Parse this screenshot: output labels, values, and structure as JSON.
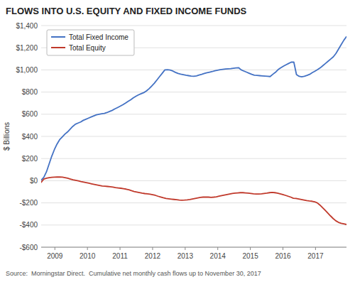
{
  "chart_data": {
    "type": "line",
    "title": "FLOWS INTO U.S. EQUITY AND FIXED INCOME FUNDS",
    "y_label": "$ Billions",
    "source": "Source:  Morningstar Direct.  Cumulative net monthly cash flows up to November 30, 2017",
    "xlim": [
      2008.58,
      2017.95
    ],
    "xticks": [
      2009,
      2010,
      2011,
      2012,
      2013,
      2014,
      2015,
      2016,
      2017
    ],
    "ylim": [
      -600,
      1400
    ],
    "yticks": [
      {
        "value": -600,
        "label": "-$600"
      },
      {
        "value": -400,
        "label": "-$400"
      },
      {
        "value": -200,
        "label": "-$200"
      },
      {
        "value": 0,
        "label": "$0"
      },
      {
        "value": 200,
        "label": "$200"
      },
      {
        "value": 400,
        "label": "$400"
      },
      {
        "value": 600,
        "label": "$600"
      },
      {
        "value": 800,
        "label": "$800"
      },
      {
        "value": 1000,
        "label": "$1,000"
      },
      {
        "value": 1200,
        "label": "$1,200"
      },
      {
        "value": 1400,
        "label": "$1,400"
      }
    ],
    "grid": true,
    "legend": "upper left",
    "series": [
      {
        "name": "Total Fixed Income",
        "color": "#4472c4",
        "x": [
          2008.58,
          2008.6608,
          2008.7416,
          2008.8223,
          2008.9031,
          2008.9839,
          2009.0647,
          2009.1454,
          2009.2262,
          2009.307,
          2009.3878,
          2009.4685,
          2009.5493,
          2009.6301,
          2009.7109,
          2009.7916,
          2009.8724,
          2009.9532,
          2010.034,
          2010.1147,
          2010.1955,
          2010.2763,
          2010.3571,
          2010.4378,
          2010.5186,
          2010.5994,
          2010.6802,
          2010.7609,
          2010.8417,
          2010.9225,
          2011.0033,
          2011.0841,
          2011.1648,
          2011.2456,
          2011.3264,
          2011.4072,
          2011.4879,
          2011.5687,
          2011.6495,
          2011.7303,
          2011.811,
          2011.8918,
          2011.9726,
          2012.0534,
          2012.1341,
          2012.2149,
          2012.2957,
          2012.3765,
          2012.4572,
          2012.538,
          2012.6188,
          2012.6996,
          2012.7803,
          2012.8611,
          2012.9419,
          2013.0227,
          2013.1034,
          2013.1842,
          2013.265,
          2013.3458,
          2013.4266,
          2013.5073,
          2013.5881,
          2013.6689,
          2013.7497,
          2013.8304,
          2013.9112,
          2013.992,
          2014.0728,
          2014.1535,
          2014.2343,
          2014.3151,
          2014.3959,
          2014.4766,
          2014.5574,
          2014.6382,
          2014.719,
          2014.7997,
          2014.8805,
          2014.9613,
          2015.0421,
          2015.1228,
          2015.2036,
          2015.2844,
          2015.3652,
          2015.4459,
          2015.5267,
          2015.6075,
          2015.6883,
          2015.7691,
          2015.8498,
          2015.9306,
          2016.0114,
          2016.0922,
          2016.1729,
          2016.2537,
          2016.3345,
          2016.4153,
          2016.496,
          2016.5768,
          2016.6576,
          2016.7384,
          2016.8191,
          2016.8999,
          2016.9807,
          2017.0615,
          2017.1422,
          2017.223,
          2017.3038,
          2017.3846,
          2017.4653,
          2017.5461,
          2017.6269,
          2017.7077,
          2017.7884,
          2017.8692,
          2017.95
        ],
        "values": [
          5,
          30,
          80,
          150,
          220,
          280,
          330,
          370,
          395,
          420,
          440,
          465,
          490,
          510,
          520,
          530,
          545,
          555,
          565,
          575,
          585,
          595,
          600,
          605,
          608,
          615,
          625,
          635,
          648,
          660,
          672,
          685,
          700,
          715,
          730,
          748,
          762,
          775,
          785,
          795,
          810,
          830,
          855,
          880,
          910,
          940,
          970,
          1000,
          1002,
          998,
          990,
          978,
          968,
          962,
          957,
          952,
          948,
          944,
          942,
          946,
          953,
          960,
          968,
          975,
          980,
          985,
          992,
          997,
          1002,
          1005,
          1008,
          1010,
          1012,
          1015,
          1018,
          1020,
          1000,
          990,
          980,
          970,
          960,
          952,
          950,
          948,
          946,
          944,
          942,
          940,
          960,
          978,
          1002,
          1018,
          1033,
          1046,
          1058,
          1070,
          1070,
          958,
          942,
          937,
          942,
          950,
          960,
          975,
          988,
          1002,
          1018,
          1038,
          1058,
          1078,
          1098,
          1118,
          1148,
          1188,
          1228,
          1268,
          1300
        ]
      },
      {
        "name": "Total Equity",
        "color": "#c0392b",
        "x": [
          2008.58,
          2008.6615,
          2008.743,
          2008.8244,
          2008.9059,
          2008.9874,
          2009.0689,
          2009.1503,
          2009.2318,
          2009.3133,
          2009.3948,
          2009.4763,
          2009.5577,
          2009.6392,
          2009.7207,
          2009.8022,
          2009.8837,
          2009.9651,
          2010.0466,
          2010.1281,
          2010.2096,
          2010.291,
          2010.3725,
          2010.454,
          2010.5355,
          2010.617,
          2010.6984,
          2010.7799,
          2010.8614,
          2010.9429,
          2011.0243,
          2011.1058,
          2011.1873,
          2011.2688,
          2011.3503,
          2011.4317,
          2011.5132,
          2011.5947,
          2011.6762,
          2011.7577,
          2011.8391,
          2011.9206,
          2012.0021,
          2012.0836,
          2012.165,
          2012.2465,
          2012.328,
          2012.4095,
          2012.491,
          2012.5724,
          2012.6539,
          2012.7354,
          2012.8169,
          2012.8983,
          2012.9798,
          2013.0613,
          2013.1428,
          2013.2243,
          2013.3057,
          2013.3872,
          2013.4687,
          2013.5502,
          2013.6317,
          2013.7131,
          2013.7946,
          2013.8761,
          2013.9576,
          2014.039,
          2014.1205,
          2014.202,
          2014.2835,
          2014.365,
          2014.4464,
          2014.5279,
          2014.6094,
          2014.6909,
          2014.7723,
          2014.8538,
          2014.9353,
          2015.0168,
          2015.0983,
          2015.1797,
          2015.2612,
          2015.3427,
          2015.4242,
          2015.5057,
          2015.5871,
          2015.6686,
          2015.7501,
          2015.8316,
          2015.913,
          2015.9945,
          2016.076,
          2016.1575,
          2016.239,
          2016.3204,
          2016.4019,
          2016.4834,
          2016.5649,
          2016.6463,
          2016.7278,
          2016.8093,
          2016.8908,
          2016.9723,
          2017.0537,
          2017.1352,
          2017.2167,
          2017.2982,
          2017.3797,
          2017.4611,
          2017.5426,
          2017.6241,
          2017.7056,
          2017.787,
          2017.8685,
          2017.95
        ],
        "values": [
          -15,
          15,
          22,
          28,
          30,
          32,
          33,
          33,
          32,
          28,
          22,
          15,
          8,
          3,
          -2,
          -8,
          -13,
          -18,
          -23,
          -28,
          -33,
          -38,
          -43,
          -48,
          -50,
          -52,
          -55,
          -58,
          -62,
          -65,
          -68,
          -72,
          -76,
          -82,
          -90,
          -97,
          -102,
          -107,
          -112,
          -116,
          -118,
          -121,
          -126,
          -132,
          -140,
          -147,
          -154,
          -160,
          -163,
          -166,
          -169,
          -172,
          -175,
          -176,
          -175,
          -173,
          -170,
          -165,
          -160,
          -155,
          -150,
          -148,
          -147,
          -148,
          -150,
          -148,
          -145,
          -140,
          -135,
          -130,
          -125,
          -120,
          -115,
          -112,
          -110,
          -108,
          -108,
          -110,
          -112,
          -115,
          -118,
          -120,
          -120,
          -118,
          -115,
          -112,
          -108,
          -105,
          -108,
          -112,
          -118,
          -125,
          -132,
          -140,
          -148,
          -158,
          -160,
          -165,
          -170,
          -175,
          -180,
          -183,
          -185,
          -190,
          -200,
          -220,
          -243,
          -268,
          -293,
          -318,
          -342,
          -362,
          -376,
          -385,
          -390,
          -395
        ]
      }
    ]
  }
}
